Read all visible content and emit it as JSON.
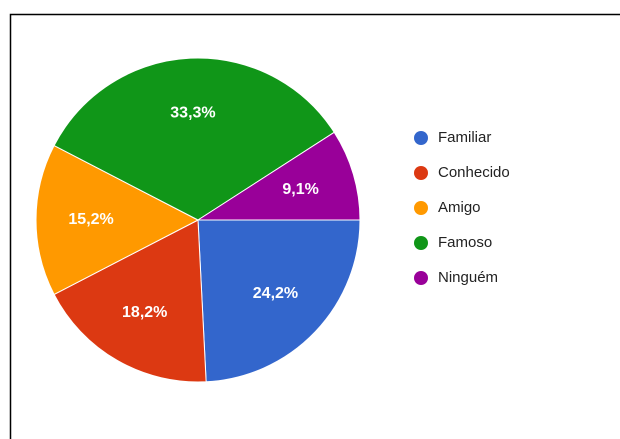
{
  "chart_data": {
    "type": "pie",
    "categories": [
      "Familiar",
      "Conhecido",
      "Amigo",
      "Famoso",
      "Ninguém"
    ],
    "values": [
      24.2,
      18.2,
      15.2,
      33.3,
      9.1
    ],
    "value_labels": [
      "24,2%",
      "18,2%",
      "15,2%",
      "33,3%",
      "9,1%"
    ],
    "colors": [
      "#3366cc",
      "#dc3912",
      "#ff9900",
      "#109618",
      "#990099"
    ],
    "legend": "right"
  }
}
